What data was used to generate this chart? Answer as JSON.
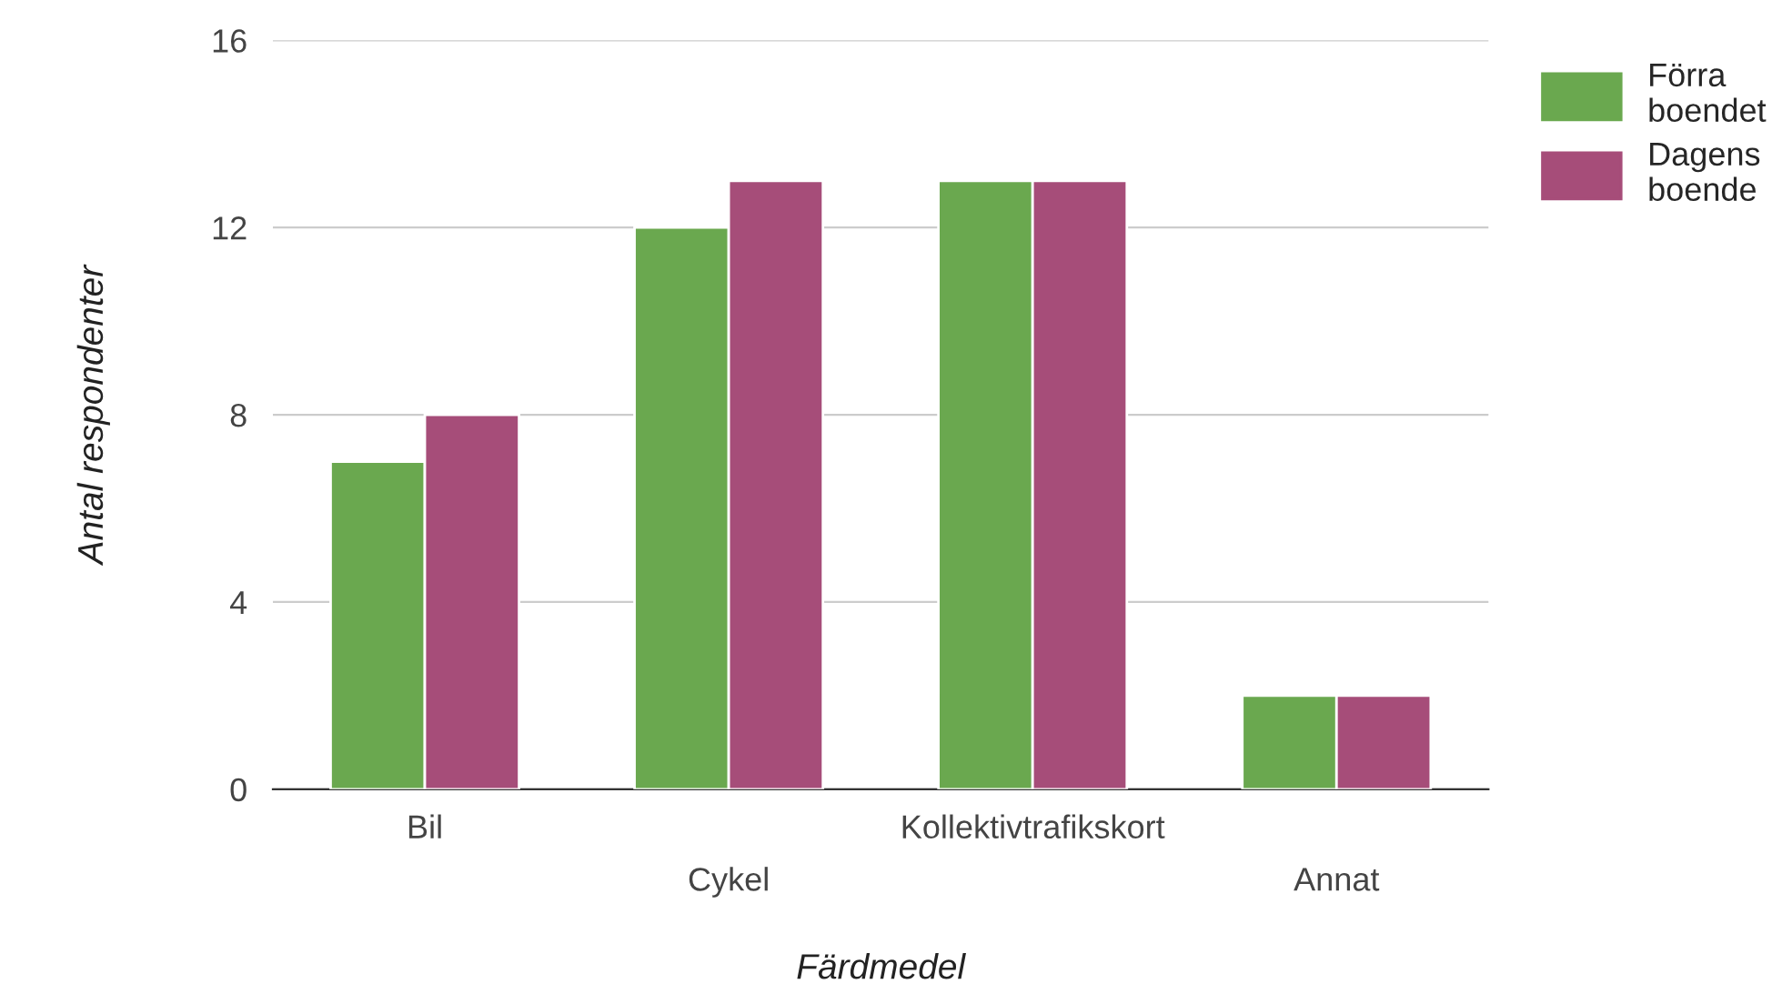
{
  "chart_data": {
    "type": "bar",
    "xlabel": "Färdmedel",
    "ylabel": "Antal respondenter",
    "categories": [
      "Bil",
      "Cykel",
      "Kollektivtrafikskort",
      "Annat"
    ],
    "series": [
      {
        "name": "Förra boendet",
        "color": "#6aa84f",
        "values": [
          7,
          12,
          13,
          2
        ]
      },
      {
        "name": "Dagens boende",
        "color": "#a64d79",
        "values": [
          8,
          13,
          13,
          2
        ]
      }
    ],
    "ylim": [
      0,
      16
    ],
    "yticks": [
      0,
      4,
      8,
      12,
      16
    ],
    "grid": "y",
    "legend": "top right"
  }
}
